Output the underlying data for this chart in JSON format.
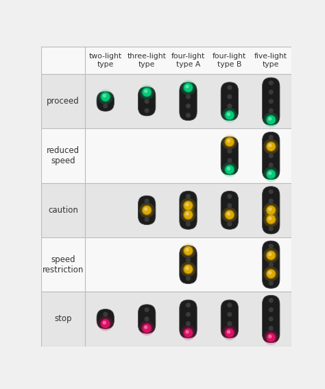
{
  "col_headers": [
    "two-light\ntype",
    "three-light\ntype",
    "four-light\ntype A",
    "four-light\ntype B",
    "five-light\ntype"
  ],
  "row_headers": [
    "proceed",
    "reduced\nspeed",
    "caution",
    "speed\nrestriction",
    "stop"
  ],
  "row_bg": [
    "#e5e5e5",
    "#f8f8f8",
    "#e5e5e5",
    "#f8f8f8",
    "#e5e5e5"
  ],
  "header_bg": "#f8f8f8",
  "grid_line_color": "#bbbbbb",
  "signal_bg": "#1c1c1c",
  "off_color": "#3a3a3a",
  "green": "#00cc77",
  "yellow": "#ddaa00",
  "red": "#dd1166",
  "signals": {
    "proceed": {
      "col0": {
        "n_lights": 2,
        "lit": [
          0
        ],
        "colors": [
          "green"
        ]
      },
      "col1": {
        "n_lights": 3,
        "lit": [
          0
        ],
        "colors": [
          "green"
        ]
      },
      "col2": {
        "n_lights": 4,
        "lit": [
          0
        ],
        "colors": [
          "green"
        ]
      },
      "col3": {
        "n_lights": 4,
        "lit": [
          3
        ],
        "colors": [
          "green"
        ]
      },
      "col4": {
        "n_lights": 5,
        "lit": [
          4
        ],
        "colors": [
          "green"
        ]
      }
    },
    "reduced_speed": {
      "col0": null,
      "col1": null,
      "col2": null,
      "col3": {
        "n_lights": 4,
        "lit": [
          0,
          3
        ],
        "colors": [
          "yellow",
          "green"
        ]
      },
      "col4": {
        "n_lights": 5,
        "lit": [
          1,
          4
        ],
        "colors": [
          "yellow",
          "green"
        ]
      }
    },
    "caution": {
      "col0": null,
      "col1": {
        "n_lights": 3,
        "lit": [
          1
        ],
        "colors": [
          "yellow"
        ]
      },
      "col2": {
        "n_lights": 4,
        "lit": [
          1,
          2
        ],
        "colors": [
          "yellow",
          "yellow"
        ]
      },
      "col3": {
        "n_lights": 4,
        "lit": [
          2
        ],
        "colors": [
          "yellow"
        ]
      },
      "col4": {
        "n_lights": 5,
        "lit": [
          2,
          3
        ],
        "colors": [
          "yellow",
          "yellow"
        ]
      }
    },
    "speed_restriction": {
      "col0": null,
      "col1": null,
      "col2": {
        "n_lights": 4,
        "lit": [
          0,
          2
        ],
        "colors": [
          "yellow",
          "yellow"
        ]
      },
      "col3": null,
      "col4": {
        "n_lights": 5,
        "lit": [
          1,
          3
        ],
        "colors": [
          "yellow",
          "yellow"
        ]
      }
    },
    "stop": {
      "col0": {
        "n_lights": 2,
        "lit": [
          1
        ],
        "colors": [
          "red"
        ]
      },
      "col1": {
        "n_lights": 3,
        "lit": [
          2
        ],
        "colors": [
          "red"
        ]
      },
      "col2": {
        "n_lights": 4,
        "lit": [
          3
        ],
        "colors": [
          "red"
        ]
      },
      "col3": {
        "n_lights": 4,
        "lit": [
          3
        ],
        "colors": [
          "red"
        ]
      },
      "col4": {
        "n_lights": 5,
        "lit": [
          4
        ],
        "colors": [
          "red"
        ]
      }
    }
  }
}
